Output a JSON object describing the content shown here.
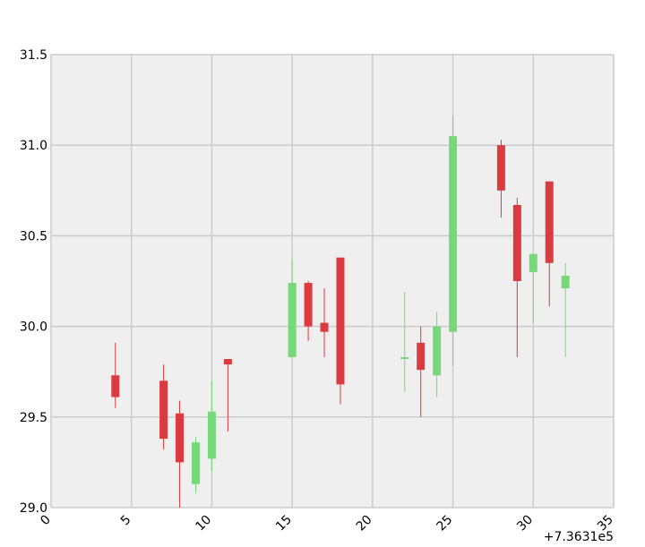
{
  "chart_data": {
    "type": "candlestick",
    "x": [
      4,
      7,
      8,
      9,
      10,
      11,
      15,
      16,
      17,
      18,
      22,
      23,
      24,
      25,
      28,
      29,
      30,
      31,
      32
    ],
    "open": [
      29.73,
      29.7,
      29.52,
      29.13,
      29.27,
      29.82,
      29.83,
      30.24,
      30.02,
      30.38,
      29.82,
      29.91,
      29.73,
      29.97,
      31.0,
      30.67,
      30.3,
      30.8,
      30.21
    ],
    "high": [
      29.91,
      29.79,
      29.59,
      29.39,
      29.7,
      29.82,
      30.37,
      30.25,
      30.21,
      30.38,
      30.19,
      30.0,
      30.08,
      31.16,
      31.03,
      30.71,
      30.4,
      30.8,
      30.35
    ],
    "low": [
      29.55,
      29.32,
      29.0,
      29.08,
      29.2,
      29.42,
      29.83,
      29.92,
      29.83,
      29.57,
      29.64,
      29.5,
      29.61,
      29.78,
      30.6,
      29.83,
      30.02,
      30.11,
      29.83
    ],
    "close": [
      29.61,
      29.38,
      29.25,
      29.36,
      29.53,
      29.79,
      30.24,
      30.0,
      29.97,
      29.68,
      29.83,
      29.76,
      30.0,
      31.05,
      30.75,
      30.25,
      30.4,
      30.35,
      30.28
    ],
    "color_up": "#77d879",
    "color_down": "#db3a3f",
    "xlim": [
      0,
      35
    ],
    "xticks": [
      0,
      5,
      10,
      15,
      20,
      25,
      30,
      35
    ],
    "x_offset_label": "+7.3631e5",
    "ylim": [
      29.0,
      31.5
    ],
    "yticks": [
      {
        "value": 29.0,
        "label": "29.0"
      },
      29.5,
      {
        "value": 30.0,
        "label": "30.0"
      },
      30.5,
      {
        "value": 31.0,
        "label": "31.0"
      },
      31.5
    ],
    "grid": true
  }
}
